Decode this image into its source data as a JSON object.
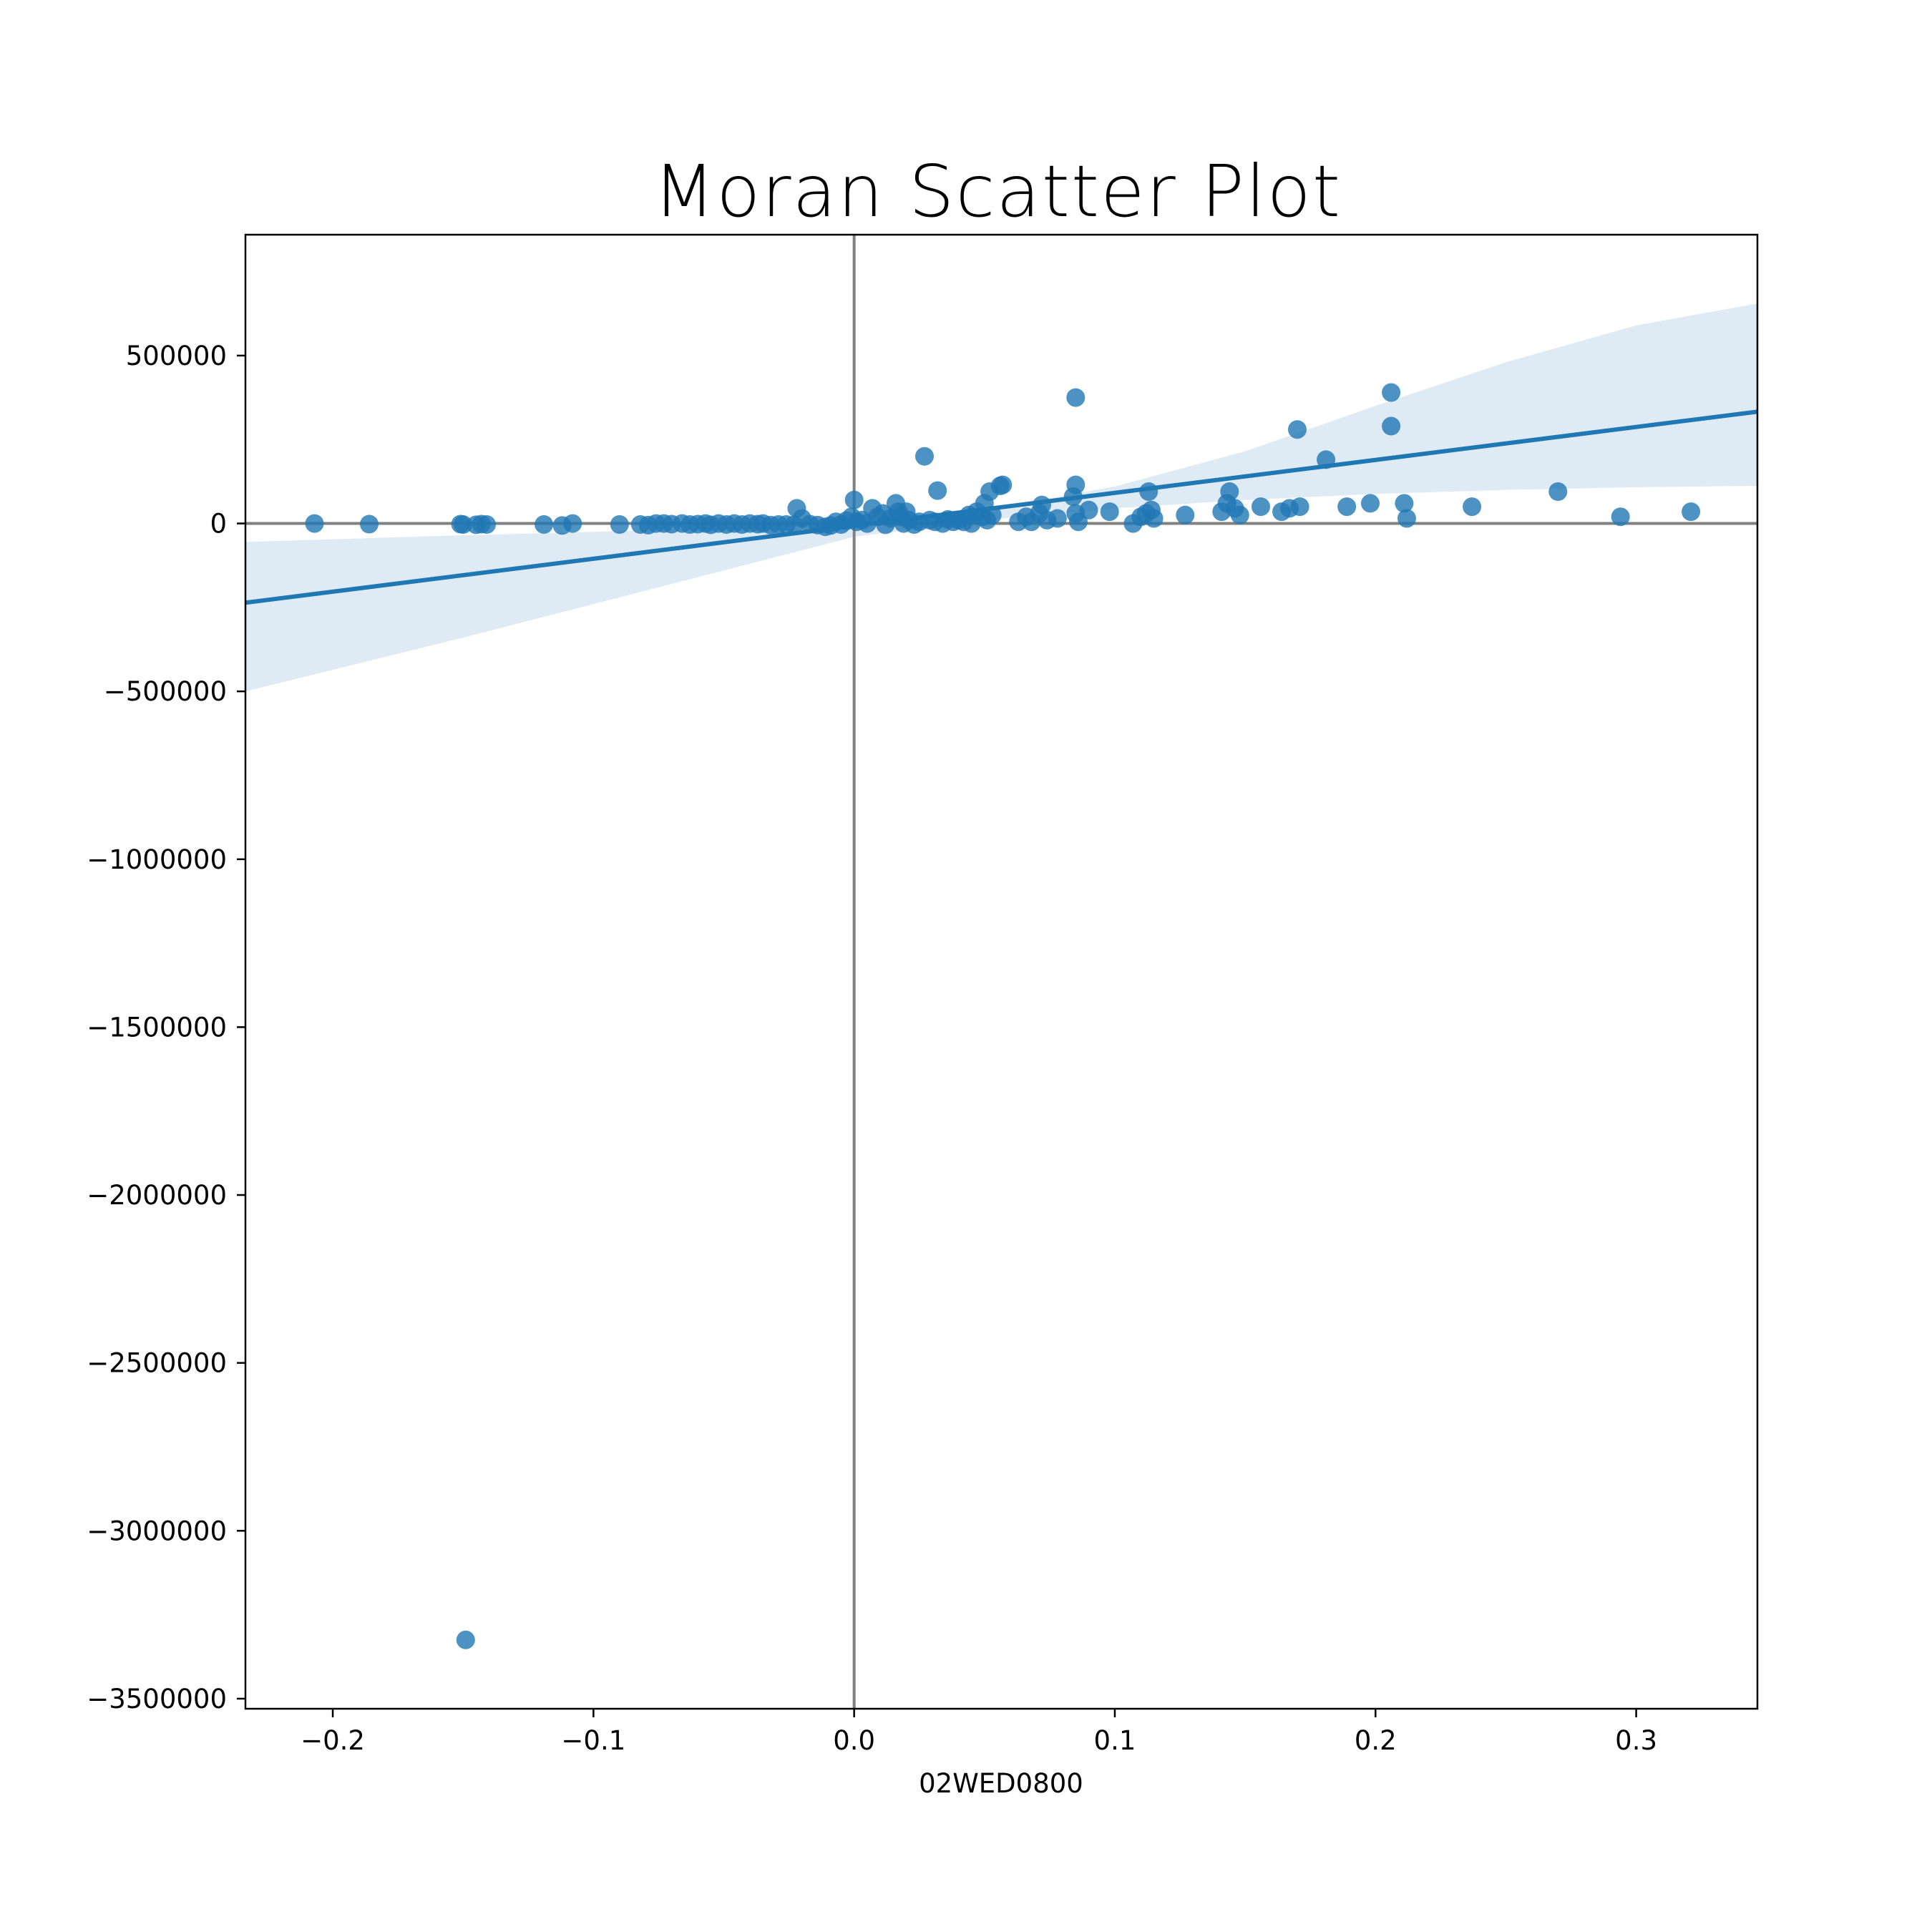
{
  "chart_data": {
    "type": "scatter",
    "title": "Moran Scatter Plot",
    "xlabel": "02WED0800",
    "ylabel": "",
    "xlim": [
      -0.2335,
      0.3465
    ],
    "ylim": [
      -3530000,
      860000
    ],
    "xticks": [
      -0.2,
      -0.1,
      0.0,
      0.1,
      0.2,
      0.3
    ],
    "xtick_labels": [
      "−0.2",
      "−0.1",
      "0.0",
      "0.1",
      "0.2",
      "0.3"
    ],
    "yticks": [
      500000,
      0,
      -500000,
      -1000000,
      -1500000,
      -2000000,
      -2500000,
      -3000000,
      -3500000
    ],
    "ytick_labels": [
      "500000",
      "0",
      "−500000",
      "−1000000",
      "−1500000",
      "−2000000",
      "−2500000",
      "−3000000",
      "−3500000"
    ],
    "grid": false,
    "reference_lines": {
      "x": 0,
      "y": 0,
      "color": "#808080"
    },
    "colors": {
      "points": "#1f77b4",
      "regression_line": "#1f77b4",
      "confidence_band": "#1f77b4"
    },
    "regression": {
      "x": [
        -0.2335,
        0.3465
      ],
      "y": [
        -236000,
        333000
      ]
    },
    "confidence_band": {
      "x": [
        -0.2335,
        -0.15,
        -0.1,
        -0.05,
        0.0,
        0.05,
        0.1,
        0.15,
        0.2,
        0.25,
        0.3,
        0.3465
      ],
      "lower": [
        -500000,
        -340000,
        -240000,
        -140000,
        -40000,
        10000,
        45000,
        70000,
        88000,
        100000,
        108000,
        112000
      ],
      "upper": [
        -55000,
        -35000,
        -25000,
        -12000,
        5000,
        40000,
        110000,
        215000,
        350000,
        480000,
        590000,
        655000
      ]
    },
    "points": [
      {
        "x": -0.207,
        "y": 0
      },
      {
        "x": -0.186,
        "y": -2000
      },
      {
        "x": -0.151,
        "y": -2000
      },
      {
        "x": -0.15,
        "y": -3000
      },
      {
        "x": -0.145,
        "y": -4000
      },
      {
        "x": -0.143,
        "y": -2000
      },
      {
        "x": -0.141,
        "y": -3000
      },
      {
        "x": -0.119,
        "y": -3000
      },
      {
        "x": -0.112,
        "y": -6000
      },
      {
        "x": -0.108,
        "y": 0
      },
      {
        "x": -0.09,
        "y": -3000
      },
      {
        "x": -0.082,
        "y": -3000
      },
      {
        "x": -0.079,
        "y": -5000
      },
      {
        "x": -0.076,
        "y": 0
      },
      {
        "x": -0.073,
        "y": 0
      },
      {
        "x": -0.07,
        "y": -2000
      },
      {
        "x": -0.066,
        "y": 0
      },
      {
        "x": -0.063,
        "y": -3000
      },
      {
        "x": -0.06,
        "y": -2000
      },
      {
        "x": -0.057,
        "y": 0
      },
      {
        "x": -0.055,
        "y": -4000
      },
      {
        "x": -0.052,
        "y": 0
      },
      {
        "x": -0.049,
        "y": -3000
      },
      {
        "x": -0.046,
        "y": 0
      },
      {
        "x": -0.043,
        "y": -3000
      },
      {
        "x": -0.04,
        "y": 0
      },
      {
        "x": -0.037,
        "y": -2000
      },
      {
        "x": -0.035,
        "y": 0
      },
      {
        "x": -0.032,
        "y": -5000
      },
      {
        "x": -0.029,
        "y": -3000
      },
      {
        "x": -0.026,
        "y": -3000
      },
      {
        "x": -0.023,
        "y": -4000
      },
      {
        "x": -0.022,
        "y": 45000
      },
      {
        "x": -0.02,
        "y": 15000
      },
      {
        "x": -0.017,
        "y": -2000
      },
      {
        "x": -0.014,
        "y": -5000
      },
      {
        "x": -0.011,
        "y": -10000
      },
      {
        "x": -0.009,
        "y": -6000
      },
      {
        "x": -0.007,
        "y": 5000
      },
      {
        "x": -0.005,
        "y": -3000
      },
      {
        "x": -0.003,
        "y": 8000
      },
      {
        "x": -0.001,
        "y": 20000
      },
      {
        "x": 0.0,
        "y": 70000
      },
      {
        "x": 0.001,
        "y": 5000
      },
      {
        "x": 0.003,
        "y": 10000
      },
      {
        "x": 0.005,
        "y": 0
      },
      {
        "x": 0.007,
        "y": 45000
      },
      {
        "x": 0.009,
        "y": 20000
      },
      {
        "x": 0.011,
        "y": 30000
      },
      {
        "x": 0.012,
        "y": -4000
      },
      {
        "x": 0.014,
        "y": 15000
      },
      {
        "x": 0.016,
        "y": 60000
      },
      {
        "x": 0.017,
        "y": 35000
      },
      {
        "x": 0.018,
        "y": 20000
      },
      {
        "x": 0.019,
        "y": 0
      },
      {
        "x": 0.02,
        "y": 35000
      },
      {
        "x": 0.021,
        "y": 10000
      },
      {
        "x": 0.023,
        "y": -3000
      },
      {
        "x": 0.025,
        "y": 5000
      },
      {
        "x": 0.027,
        "y": 200000
      },
      {
        "x": 0.029,
        "y": 10000
      },
      {
        "x": 0.031,
        "y": 5000
      },
      {
        "x": 0.032,
        "y": 98000
      },
      {
        "x": 0.034,
        "y": 0
      },
      {
        "x": 0.036,
        "y": 12000
      },
      {
        "x": 0.038,
        "y": 5000
      },
      {
        "x": 0.04,
        "y": 10000
      },
      {
        "x": 0.042,
        "y": 5000
      },
      {
        "x": 0.044,
        "y": 25000
      },
      {
        "x": 0.045,
        "y": 0
      },
      {
        "x": 0.047,
        "y": 35000
      },
      {
        "x": 0.049,
        "y": 20000
      },
      {
        "x": 0.05,
        "y": 60000
      },
      {
        "x": 0.051,
        "y": 10000
      },
      {
        "x": 0.052,
        "y": 95000
      },
      {
        "x": 0.053,
        "y": 25000
      },
      {
        "x": 0.056,
        "y": 112000
      },
      {
        "x": 0.057,
        "y": 115000
      },
      {
        "x": 0.063,
        "y": 5000
      },
      {
        "x": 0.066,
        "y": 20000
      },
      {
        "x": 0.068,
        "y": 5000
      },
      {
        "x": 0.071,
        "y": 30000
      },
      {
        "x": 0.072,
        "y": 55000
      },
      {
        "x": 0.074,
        "y": 10000
      },
      {
        "x": 0.078,
        "y": 15000
      },
      {
        "x": 0.084,
        "y": 80000
      },
      {
        "x": 0.085,
        "y": 375000
      },
      {
        "x": 0.085,
        "y": 115000
      },
      {
        "x": 0.085,
        "y": 30000
      },
      {
        "x": 0.086,
        "y": 5000
      },
      {
        "x": 0.09,
        "y": 40000
      },
      {
        "x": 0.098,
        "y": 35000
      },
      {
        "x": 0.107,
        "y": 0
      },
      {
        "x": 0.11,
        "y": 20000
      },
      {
        "x": 0.112,
        "y": 30000
      },
      {
        "x": 0.113,
        "y": 95000
      },
      {
        "x": 0.114,
        "y": 40000
      },
      {
        "x": 0.115,
        "y": 15000
      },
      {
        "x": 0.127,
        "y": 25000
      },
      {
        "x": 0.141,
        "y": 35000
      },
      {
        "x": 0.143,
        "y": 60000
      },
      {
        "x": 0.144,
        "y": 95000
      },
      {
        "x": 0.146,
        "y": 45000
      },
      {
        "x": 0.148,
        "y": 25000
      },
      {
        "x": 0.156,
        "y": 50000
      },
      {
        "x": 0.164,
        "y": 35000
      },
      {
        "x": 0.167,
        "y": 45000
      },
      {
        "x": 0.17,
        "y": 280000
      },
      {
        "x": 0.171,
        "y": 50000
      },
      {
        "x": 0.181,
        "y": 190000
      },
      {
        "x": 0.189,
        "y": 50000
      },
      {
        "x": 0.198,
        "y": 60000
      },
      {
        "x": 0.206,
        "y": 390000
      },
      {
        "x": 0.206,
        "y": 290000
      },
      {
        "x": 0.211,
        "y": 60000
      },
      {
        "x": 0.212,
        "y": 15000
      },
      {
        "x": 0.237,
        "y": 50000
      },
      {
        "x": 0.27,
        "y": 95000
      },
      {
        "x": 0.294,
        "y": 20000
      },
      {
        "x": 0.321,
        "y": 35000
      },
      {
        "x": -0.149,
        "y": -3325000
      }
    ]
  }
}
